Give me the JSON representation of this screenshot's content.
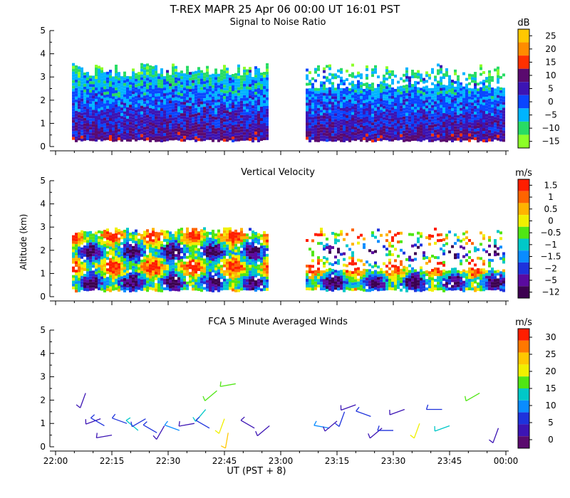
{
  "header": {
    "title": "T-REX  MAPR 25 Apr 06  00:00 UT  16:01  PST"
  },
  "x_axis": {
    "label": "UT  (PST + 8)",
    "ticks": [
      "22:00",
      "22:15",
      "22:30",
      "22:45",
      "23:00",
      "23:15",
      "23:30",
      "23:45",
      "00:00"
    ]
  },
  "y_axis": {
    "label": "Altitude (km)",
    "ticks": [
      "0",
      "1",
      "2",
      "3",
      "4",
      "5"
    ]
  },
  "chart_data": [
    {
      "type": "heatmap",
      "title": "Signal to Noise Ratio",
      "xlabel": "UT  (PST + 8)",
      "ylabel": "Altitude (km)",
      "xlim": [
        "22:00",
        "00:00"
      ],
      "ylim": [
        0,
        5
      ],
      "colorbar": {
        "unit": "dB",
        "labels": [
          "25",
          "20",
          "15",
          "10",
          "5",
          "0",
          "−5",
          "−10",
          "−15"
        ],
        "colors": [
          "#ffc800",
          "#ff8c00",
          "#ff3000",
          "#5a0a6e",
          "#3c14b4",
          "#0a46ff",
          "#00b4ff",
          "#28dc64",
          "#8cff28"
        ]
      },
      "data_gap": [
        "22:57",
        "23:06"
      ],
      "data_range_alt_km": [
        0.3,
        3.6
      ]
    },
    {
      "type": "heatmap",
      "title": "Vertical Velocity",
      "xlabel": "UT  (PST + 8)",
      "ylabel": "Altitude (km)",
      "xlim": [
        "22:00",
        "00:00"
      ],
      "ylim": [
        0,
        5
      ],
      "colorbar": {
        "unit": "m/s",
        "labels": [
          "1.5",
          "1",
          "0.5",
          "0",
          "−0.5",
          "−1",
          "−1.5",
          "−2",
          "−5",
          "−12"
        ],
        "colors": [
          "#ff1e00",
          "#ff6400",
          "#ffb400",
          "#f0f000",
          "#50e614",
          "#00c8c8",
          "#0a8cff",
          "#1e32dc",
          "#5a0aa0",
          "#3c0050"
        ]
      },
      "data_gap": [
        "22:57",
        "23:06"
      ],
      "data_range_alt_km": [
        0.3,
        3.0
      ]
    },
    {
      "type": "barbs",
      "title": "FCA 5 Minute Averaged Winds",
      "xlabel": "UT  (PST + 8)",
      "ylabel": "Altitude (km)",
      "xlim": [
        "22:00",
        "00:00"
      ],
      "ylim": [
        0,
        5
      ],
      "colorbar": {
        "unit": "m/s",
        "labels": [
          "30",
          "25",
          "20",
          "15",
          "10",
          "5",
          "0"
        ],
        "colors": [
          "#ff1e00",
          "#ff7800",
          "#ffc800",
          "#f0f000",
          "#50e614",
          "#00c8c8",
          "#0a8cff",
          "#1e32dc",
          "#3c14b4",
          "#5a0a6e"
        ]
      },
      "barbs": [
        {
          "t": "22:08",
          "alt": 2.3,
          "dir": 200,
          "spd": 4
        },
        {
          "t": "22:12",
          "alt": 1.2,
          "dir": 250,
          "spd": 3
        },
        {
          "t": "22:13",
          "alt": 0.9,
          "dir": 300,
          "spd": 5
        },
        {
          "t": "22:15",
          "alt": 0.5,
          "dir": 260,
          "spd": 4
        },
        {
          "t": "22:19",
          "alt": 1.0,
          "dir": 290,
          "spd": 6
        },
        {
          "t": "22:22",
          "alt": 0.7,
          "dir": 310,
          "spd": 14
        },
        {
          "t": "22:24",
          "alt": 1.2,
          "dir": 240,
          "spd": 5
        },
        {
          "t": "22:27",
          "alt": 0.6,
          "dir": 300,
          "spd": 7
        },
        {
          "t": "22:29",
          "alt": 0.9,
          "dir": 210,
          "spd": 4
        },
        {
          "t": "22:33",
          "alt": 0.7,
          "dir": 290,
          "spd": 10
        },
        {
          "t": "22:37",
          "alt": 1.0,
          "dir": 260,
          "spd": 4
        },
        {
          "t": "22:40",
          "alt": 1.6,
          "dir": 220,
          "spd": 13
        },
        {
          "t": "22:41",
          "alt": 0.8,
          "dir": 300,
          "spd": 5
        },
        {
          "t": "22:43",
          "alt": 2.4,
          "dir": 230,
          "spd": 17
        },
        {
          "t": "22:45",
          "alt": 1.2,
          "dir": 200,
          "spd": 20
        },
        {
          "t": "22:46",
          "alt": 0.6,
          "dir": 190,
          "spd": 24
        },
        {
          "t": "22:48",
          "alt": 2.7,
          "dir": 260,
          "spd": 18
        },
        {
          "t": "22:53",
          "alt": 0.8,
          "dir": 300,
          "spd": 4
        },
        {
          "t": "22:57",
          "alt": 0.9,
          "dir": 230,
          "spd": 3
        },
        {
          "t": "23:13",
          "alt": 0.8,
          "dir": 280,
          "spd": 9
        },
        {
          "t": "23:15",
          "alt": 1.1,
          "dir": 230,
          "spd": 4
        },
        {
          "t": "23:17",
          "alt": 1.5,
          "dir": 200,
          "spd": 5
        },
        {
          "t": "23:20",
          "alt": 1.8,
          "dir": 250,
          "spd": 4
        },
        {
          "t": "23:24",
          "alt": 1.3,
          "dir": 290,
          "spd": 5
        },
        {
          "t": "23:27",
          "alt": 0.8,
          "dir": 230,
          "spd": 4
        },
        {
          "t": "23:30",
          "alt": 0.7,
          "dir": 270,
          "spd": 8
        },
        {
          "t": "23:33",
          "alt": 1.6,
          "dir": 250,
          "spd": 4
        },
        {
          "t": "23:37",
          "alt": 1.0,
          "dir": 200,
          "spd": 20
        },
        {
          "t": "23:43",
          "alt": 1.6,
          "dir": 270,
          "spd": 5
        },
        {
          "t": "23:45",
          "alt": 0.9,
          "dir": 250,
          "spd": 12
        },
        {
          "t": "23:53",
          "alt": 2.3,
          "dir": 240,
          "spd": 16
        },
        {
          "t": "23:58",
          "alt": 0.8,
          "dir": 200,
          "spd": 4
        }
      ]
    }
  ]
}
